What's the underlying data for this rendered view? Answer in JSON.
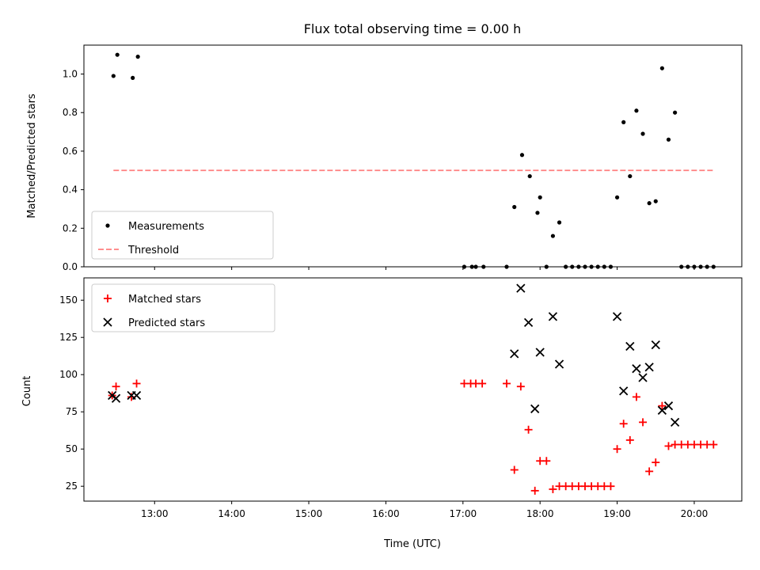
{
  "chart_data": [
    {
      "type": "scatter",
      "title": "Flux total observing time = 0.00 h",
      "xlabel": "",
      "ylabel": "Matched/Predicted stars",
      "xlim": [
        "12:05",
        "20:37"
      ],
      "ylim": [
        0,
        1.15
      ],
      "yticks": [
        "0.0",
        "0.2",
        "0.4",
        "0.6",
        "0.8",
        "1.0"
      ],
      "xticks": [
        "13:00",
        "14:00",
        "15:00",
        "16:00",
        "17:00",
        "18:00",
        "19:00",
        "20:00"
      ],
      "grid": false,
      "legend_position": "lower-left",
      "series": [
        {
          "name": "Measurements",
          "marker": "dot",
          "color": "#000000",
          "points": [
            [
              "12:28",
              0.99
            ],
            [
              "12:31",
              1.1
            ],
            [
              "12:43",
              0.98
            ],
            [
              "12:47",
              1.09
            ],
            [
              "17:01",
              0.0
            ],
            [
              "17:07",
              0.0
            ],
            [
              "17:10",
              0.0
            ],
            [
              "17:16",
              0.0
            ],
            [
              "17:34",
              0.0
            ],
            [
              "17:40",
              0.31
            ],
            [
              "17:46",
              0.58
            ],
            [
              "17:52",
              0.47
            ],
            [
              "17:58",
              0.28
            ],
            [
              "18:00",
              0.36
            ],
            [
              "18:05",
              0.0
            ],
            [
              "18:10",
              0.16
            ],
            [
              "18:15",
              0.23
            ],
            [
              "18:20",
              0.0
            ],
            [
              "18:25",
              0.0
            ],
            [
              "18:30",
              0.0
            ],
            [
              "18:35",
              0.0
            ],
            [
              "18:40",
              0.0
            ],
            [
              "18:45",
              0.0
            ],
            [
              "18:50",
              0.0
            ],
            [
              "18:55",
              0.0
            ],
            [
              "19:00",
              0.36
            ],
            [
              "19:05",
              0.75
            ],
            [
              "19:10",
              0.47
            ],
            [
              "19:15",
              0.81
            ],
            [
              "19:20",
              0.69
            ],
            [
              "19:25",
              0.33
            ],
            [
              "19:30",
              0.34
            ],
            [
              "19:35",
              1.03
            ],
            [
              "19:40",
              0.66
            ],
            [
              "19:45",
              0.8
            ],
            [
              "19:50",
              0.0
            ],
            [
              "19:55",
              0.0
            ],
            [
              "20:00",
              0.0
            ],
            [
              "20:05",
              0.0
            ],
            [
              "20:10",
              0.0
            ],
            [
              "20:15",
              0.0
            ]
          ]
        },
        {
          "name": "Threshold",
          "marker": "dashed-line",
          "color": "#ff7f7f",
          "points": [
            [
              "12:28",
              0.5
            ],
            [
              "20:15",
              0.5
            ]
          ]
        }
      ]
    },
    {
      "type": "scatter",
      "title": "",
      "xlabel": "Time (UTC)",
      "ylabel": "Count",
      "xlim": [
        "12:05",
        "20:37"
      ],
      "ylim": [
        15,
        165
      ],
      "yticks": [
        "25",
        "50",
        "75",
        "100",
        "125",
        "150"
      ],
      "xticks": [
        "13:00",
        "14:00",
        "15:00",
        "16:00",
        "17:00",
        "18:00",
        "19:00",
        "20:00"
      ],
      "grid": false,
      "legend_position": "upper-left",
      "series": [
        {
          "name": "Matched stars",
          "marker": "plus",
          "color": "#ff0000",
          "points": [
            [
              "12:27",
              86
            ],
            [
              "12:30",
              92
            ],
            [
              "12:42",
              85
            ],
            [
              "12:46",
              94
            ],
            [
              "17:01",
              94
            ],
            [
              "17:06",
              94
            ],
            [
              "17:10",
              94
            ],
            [
              "17:15",
              94
            ],
            [
              "17:34",
              94
            ],
            [
              "17:40",
              36
            ],
            [
              "17:45",
              92
            ],
            [
              "17:51",
              63
            ],
            [
              "17:56",
              22
            ],
            [
              "18:00",
              42
            ],
            [
              "18:05",
              42
            ],
            [
              "18:10",
              23
            ],
            [
              "18:15",
              25
            ],
            [
              "18:20",
              25
            ],
            [
              "18:25",
              25
            ],
            [
              "18:30",
              25
            ],
            [
              "18:35",
              25
            ],
            [
              "18:40",
              25
            ],
            [
              "18:45",
              25
            ],
            [
              "18:50",
              25
            ],
            [
              "18:55",
              25
            ],
            [
              "19:00",
              50
            ],
            [
              "19:05",
              67
            ],
            [
              "19:10",
              56
            ],
            [
              "19:15",
              85
            ],
            [
              "19:20",
              68
            ],
            [
              "19:25",
              35
            ],
            [
              "19:30",
              41
            ],
            [
              "19:35",
              79
            ],
            [
              "19:40",
              52
            ],
            [
              "19:45",
              53
            ],
            [
              "19:50",
              53
            ],
            [
              "19:55",
              53
            ],
            [
              "20:00",
              53
            ],
            [
              "20:05",
              53
            ],
            [
              "20:10",
              53
            ],
            [
              "20:15",
              53
            ]
          ]
        },
        {
          "name": "Predicted stars",
          "marker": "x",
          "color": "#000000",
          "points": [
            [
              "12:27",
              86
            ],
            [
              "12:30",
              84
            ],
            [
              "12:42",
              86
            ],
            [
              "12:46",
              86
            ],
            [
              "17:40",
              114
            ],
            [
              "17:45",
              158
            ],
            [
              "17:51",
              135
            ],
            [
              "17:56",
              77
            ],
            [
              "18:00",
              115
            ],
            [
              "18:10",
              139
            ],
            [
              "18:15",
              107
            ],
            [
              "19:00",
              139
            ],
            [
              "19:05",
              89
            ],
            [
              "19:10",
              119
            ],
            [
              "19:15",
              104
            ],
            [
              "19:20",
              98
            ],
            [
              "19:25",
              105
            ],
            [
              "19:30",
              120
            ],
            [
              "19:35",
              76
            ],
            [
              "19:40",
              79
            ],
            [
              "19:45",
              68
            ]
          ]
        }
      ]
    }
  ]
}
